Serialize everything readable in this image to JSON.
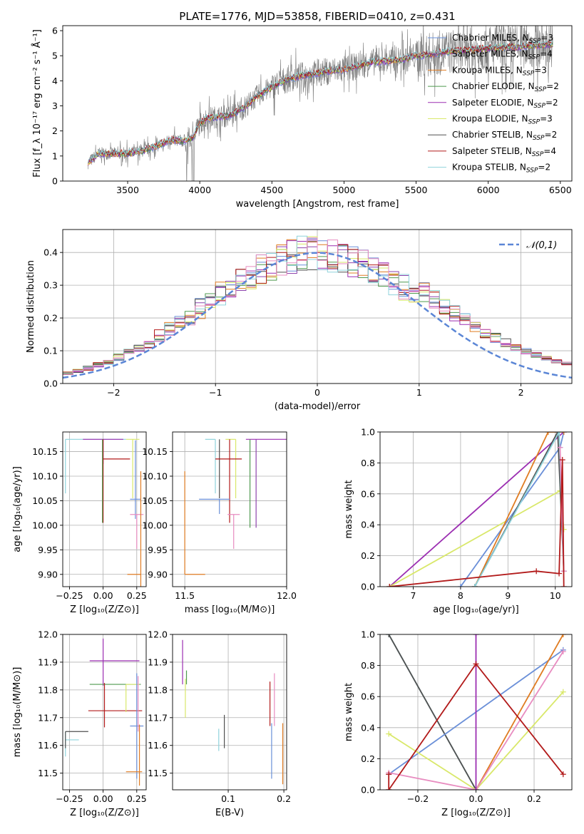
{
  "colors": {
    "Chabrier MILES": "#6a8fd8",
    "Salpeter MILES": "#8e44ad",
    "Kroupa MILES": "#e07c22",
    "Chabrier ELODIE": "#4f9a4f",
    "Salpeter ELODIE": "#9c2fb2",
    "Kroupa ELODIE": "#d9e86a",
    "Chabrier STELIB": "#505050",
    "Salpeter STELIB": "#b21a1a",
    "Kroupa STELIB": "#8fd3dc",
    "extra": "#e88cc0",
    "normal": "#5b86d6",
    "data": "#7a7a7a"
  },
  "chart_data": [
    {
      "id": "spectrum",
      "type": "line",
      "title": "PLATE=1776, MJD=53858, FIBERID=0410, z=0.431",
      "xlabel": "wavelength [Angstrom, rest frame]",
      "ylabel": "Flux [f_λ 10⁻¹⁷ erg cm⁻² s⁻¹ Å⁻¹]",
      "xlim": [
        3050,
        6580
      ],
      "ylim": [
        0,
        6.2
      ],
      "xticks": [
        3500,
        4000,
        4500,
        5000,
        5500,
        6000,
        6500
      ],
      "yticks": [
        0,
        1,
        2,
        3,
        4,
        5,
        6
      ],
      "grid": false,
      "legend_position": "top-right",
      "legend": [
        {
          "name": "Chabrier MILES",
          "nssp": "3"
        },
        {
          "name": "Salpeter MILES",
          "nssp": "4"
        },
        {
          "name": "Kroupa MILES",
          "nssp": "3"
        },
        {
          "name": "Chabrier ELODIE",
          "nssp": "2"
        },
        {
          "name": "Salpeter ELODIE",
          "nssp": "2"
        },
        {
          "name": "Kroupa ELODIE",
          "nssp": "3"
        },
        {
          "name": "Chabrier STELIB",
          "nssp": "2"
        },
        {
          "name": "Salpeter STELIB",
          "nssp": "4"
        },
        {
          "name": "Kroupa STELIB",
          "nssp": "2"
        }
      ],
      "continuum": {
        "x": [
          3220,
          3300,
          3400,
          3500,
          3600,
          3700,
          3800,
          3880,
          3950,
          4000,
          4050,
          4100,
          4200,
          4300,
          4400,
          4500,
          4600,
          4700,
          4800,
          4900,
          5000,
          5100,
          5200,
          5300,
          5400,
          5500,
          5600,
          5700,
          5800,
          5900,
          6000,
          6100,
          6200,
          6300,
          6450
        ],
        "y": [
          0.7,
          1.1,
          1.1,
          1.1,
          1.2,
          1.4,
          1.65,
          1.6,
          1.7,
          2.3,
          2.5,
          2.55,
          2.6,
          2.9,
          3.4,
          3.75,
          4.05,
          4.2,
          4.3,
          4.4,
          4.45,
          4.6,
          4.75,
          4.8,
          4.85,
          5.0,
          5.05,
          5.15,
          5.2,
          5.25,
          5.3,
          5.35,
          5.35,
          5.4,
          5.45
        ]
      }
    },
    {
      "id": "residuals",
      "type": "line",
      "xlabel": "(data-model)/error",
      "ylabel": "Normed distribution",
      "xlim": [
        -2.5,
        2.5
      ],
      "ylim": [
        0,
        0.47
      ],
      "xticks": [
        -2,
        -1,
        0,
        1,
        2
      ],
      "yticks": [
        0.0,
        0.1,
        0.2,
        0.3,
        0.4
      ],
      "grid": true,
      "legend_position": "top-right",
      "normal_label": "𝒩(0,1)",
      "bin_width": 0.1
    },
    {
      "id": "age-vs-Z",
      "type": "scatter",
      "xlabel": "Z [log₁₀(Z/Z⊙)]",
      "ylabel": "age  [log₁₀(age/yr)]",
      "xlim": [
        -0.3,
        0.32
      ],
      "ylim": [
        9.875,
        10.19
      ],
      "xticks": [
        -0.25,
        0.0,
        0.25
      ],
      "yticks": [
        9.9,
        9.95,
        10.0,
        10.05,
        10.1,
        10.15
      ],
      "grid": true,
      "errorbars": [
        {
          "series": "Kroupa STELIB",
          "x": -0.28,
          "y": 10.175,
          "xerr": [
            0.0,
            0.45
          ],
          "yerr": [
            0.11,
            0.0
          ]
        },
        {
          "series": "Salpeter ELODIE",
          "x": 0.0,
          "y": 10.175,
          "xerr": [
            0.15,
            0.15
          ],
          "yerr": [
            0.05,
            0.0
          ]
        },
        {
          "series": "Salpeter STELIB",
          "x": 0.0,
          "y": 10.135,
          "xerr": [
            0.0,
            0.2
          ],
          "yerr": [
            0.13,
            0.04
          ]
        },
        {
          "series": "Chabrier ELODIE",
          "x": -0.005,
          "y": 10.175,
          "xerr": [
            0.0,
            0.0
          ],
          "yerr": [
            0.17,
            0.0
          ]
        },
        {
          "series": "Kroupa ELODIE",
          "x": 0.22,
          "y": 10.175,
          "xerr": [
            0.05,
            0.05
          ],
          "yerr": [
            0.12,
            0.0
          ]
        },
        {
          "series": "Chabrier MILES",
          "x": 0.24,
          "y": 10.053,
          "xerr": [
            0.04,
            0.04
          ],
          "yerr": [
            0.04,
            0.12
          ]
        },
        {
          "series": "extra",
          "x": 0.25,
          "y": 10.022,
          "xerr": [
            0.05,
            0.05
          ],
          "yerr": [
            0.07,
            0.0
          ]
        },
        {
          "series": "Kroupa MILES",
          "x": 0.28,
          "y": 9.9,
          "xerr": [
            0.1,
            0.0
          ],
          "yerr": [
            0.03,
            0.21
          ]
        }
      ]
    },
    {
      "id": "age-vs-mass",
      "type": "scatter",
      "xlabel": "mass [log₁₀(M/M⊙)]",
      "xlim": [
        11.44,
        12.0
      ],
      "ylim": [
        9.875,
        10.19
      ],
      "xticks": [
        11.5,
        12.0
      ],
      "yticks": [
        9.9,
        9.95,
        10.0,
        10.05,
        10.1,
        10.15
      ],
      "grid": true,
      "errorbars": [
        {
          "series": "Kroupa STELIB",
          "x": 11.65,
          "y": 10.175,
          "xerr": [
            0.05,
            0.0
          ],
          "yerr": [
            0.11,
            0.0
          ]
        },
        {
          "series": "Chabrier STELIB",
          "x": 11.67,
          "y": 10.175,
          "xerr": [
            0.0,
            0.0
          ],
          "yerr": [
            0.12,
            0.0
          ]
        },
        {
          "series": "Salpeter ELODIE",
          "x": 11.9,
          "y": 10.175,
          "xerr": [
            0.1,
            0.1
          ],
          "yerr": [
            0.0,
            0.0
          ]
        },
        {
          "series": "Kroupa ELODIE",
          "x": 11.75,
          "y": 10.175,
          "xerr": [
            0.05,
            0.0
          ],
          "yerr": [
            0.12,
            0.0
          ]
        },
        {
          "series": "Salpeter STELIB",
          "x": 11.72,
          "y": 10.135,
          "xerr": [
            0.07,
            0.06
          ],
          "yerr": [
            0.13,
            0.04
          ]
        },
        {
          "series": "Chabrier ELODIE",
          "x": 11.82,
          "y": 10.175,
          "xerr": [
            0.0,
            0.0
          ],
          "yerr": [
            0.18,
            0.0
          ]
        },
        {
          "series": "Salpeter MILES",
          "x": 11.85,
          "y": 10.175,
          "xerr": [
            0.0,
            0.0
          ],
          "yerr": [
            0.18,
            0.0
          ]
        },
        {
          "series": "Chabrier MILES",
          "x": 11.67,
          "y": 10.053,
          "xerr": [
            0.1,
            0.05
          ],
          "yerr": [
            0.03,
            0.0
          ]
        },
        {
          "series": "extra",
          "x": 11.74,
          "y": 10.022,
          "xerr": [
            0.03,
            0.03
          ],
          "yerr": [
            0.07,
            0.0
          ]
        },
        {
          "series": "Kroupa MILES",
          "x": 11.5,
          "y": 9.9,
          "xerr": [
            0.0,
            0.1
          ],
          "yerr": [
            0.0,
            0.21
          ]
        }
      ]
    },
    {
      "id": "mass-weight-vs-age",
      "type": "line",
      "xlabel": "age  [log₁₀(age/yr)]",
      "ylabel": "mass weight",
      "xlim": [
        6.3,
        10.35
      ],
      "ylim": [
        0,
        1.0
      ],
      "xticks": [
        7,
        8,
        9,
        10
      ],
      "yticks": [
        0.0,
        0.2,
        0.4,
        0.6,
        0.8,
        1.0
      ],
      "grid": true,
      "series": [
        {
          "name": "Salpeter ELODIE",
          "x": [
            6.5,
            10.18
          ],
          "y": [
            0.0,
            1.0
          ]
        },
        {
          "name": "Kroupa ELODIE",
          "x": [
            6.5,
            10.1,
            10.18
          ],
          "y": [
            0.0,
            0.62,
            0.37
          ]
        },
        {
          "name": "Chabrier MILES",
          "x": [
            8.0,
            10.1,
            10.18
          ],
          "y": [
            0.0,
            0.9,
            1.0
          ]
        },
        {
          "name": "Kroupa MILES",
          "x": [
            8.3,
            9.85,
            10.18
          ],
          "y": [
            0.0,
            1.0,
            1.0
          ]
        },
        {
          "name": "Chabrier STELIB",
          "x": [
            8.3,
            10.05,
            10.18
          ],
          "y": [
            0.0,
            1.0,
            0.1
          ]
        },
        {
          "name": "Kroupa STELIB",
          "x": [
            8.3,
            10.08,
            10.18
          ],
          "y": [
            0.0,
            1.0,
            0.1
          ]
        },
        {
          "name": "extra",
          "x": [
            10.1,
            10.18
          ],
          "y": [
            0.9,
            0.1
          ]
        },
        {
          "name": "Salpeter STELIB",
          "x": [
            6.5,
            9.6,
            10.08,
            10.15,
            10.18
          ],
          "y": [
            0.0,
            0.1,
            0.085,
            0.82,
            0.0
          ]
        }
      ]
    },
    {
      "id": "mass-vs-Z",
      "type": "scatter",
      "xlabel": "Z [log₁₀(Z/Z⊙)]",
      "ylabel": "mass [log₁₀(M/M⊙)]",
      "xlim": [
        -0.3,
        0.32
      ],
      "ylim": [
        11.44,
        12.0
      ],
      "xticks": [
        -0.25,
        0.0,
        0.25
      ],
      "yticks": [
        11.5,
        11.6,
        11.7,
        11.8,
        11.9,
        12.0
      ],
      "grid": true,
      "errorbars": [
        {
          "series": "Kroupa STELIB",
          "x": -0.28,
          "y": 11.62,
          "xerr": [
            0.0,
            0.1
          ],
          "yerr": [
            0.06,
            0.03
          ]
        },
        {
          "series": "Chabrier STELIB",
          "x": -0.28,
          "y": 11.65,
          "xerr": [
            0.0,
            0.17
          ],
          "yerr": [
            0.06,
            0.0
          ]
        },
        {
          "series": "Salpeter ELODIE",
          "x": 0.0,
          "y": 11.905,
          "xerr": [
            0.1,
            0.27
          ],
          "yerr": [
            0.09,
            0.08
          ]
        },
        {
          "series": "Chabrier ELODIE",
          "x": 0.0,
          "y": 11.82,
          "xerr": [
            0.1,
            0.28
          ],
          "yerr": [
            0.0,
            0.0
          ]
        },
        {
          "series": "Salpeter STELIB",
          "x": 0.01,
          "y": 11.725,
          "xerr": [
            0.12,
            0.28
          ],
          "yerr": [
            0.06,
            0.1
          ]
        },
        {
          "series": "Kroupa ELODIE",
          "x": 0.17,
          "y": 11.82,
          "xerr": [
            0.0,
            0.1
          ],
          "yerr": [
            0.1,
            0.0
          ]
        },
        {
          "series": "Chabrier MILES",
          "x": 0.25,
          "y": 11.67,
          "xerr": [
            0.05,
            0.05
          ],
          "yerr": [
            0.19,
            0.19
          ]
        },
        {
          "series": "extra",
          "x": 0.26,
          "y": 11.75,
          "xerr": [
            0.0,
            0.0
          ],
          "yerr": [
            0.1,
            0.1
          ]
        },
        {
          "series": "Kroupa MILES",
          "x": 0.27,
          "y": 11.505,
          "xerr": [
            0.1,
            0.02
          ],
          "yerr": [
            0.05,
            0.17
          ]
        }
      ]
    },
    {
      "id": "mass-vs-ebv",
      "type": "scatter",
      "xlabel": "E(B-V)",
      "xlim": [
        0.0,
        0.205
      ],
      "ylim": [
        11.44,
        12.0
      ],
      "xticks": [
        0.1,
        0.2
      ],
      "yticks": [
        11.5,
        11.6,
        11.7,
        11.8,
        11.9,
        12.0
      ],
      "grid": true,
      "errorbars": [
        {
          "series": "Salpeter ELODIE",
          "x": 0.018,
          "y": 11.9,
          "xerr": [
            0.0,
            0.0
          ],
          "yerr": [
            0.08,
            0.08
          ]
        },
        {
          "series": "Kroupa ELODIE",
          "x": 0.023,
          "y": 11.79,
          "xerr": [
            0.0,
            0.0
          ],
          "yerr": [
            0.09,
            0.05
          ]
        },
        {
          "series": "Chabrier ELODIE",
          "x": 0.025,
          "y": 11.82,
          "xerr": [
            0.0,
            0.0
          ],
          "yerr": [
            0.0,
            0.05
          ]
        },
        {
          "series": "Kroupa STELIB",
          "x": 0.083,
          "y": 11.62,
          "xerr": [
            0.0,
            0.0
          ],
          "yerr": [
            0.04,
            0.04
          ]
        },
        {
          "series": "Chabrier STELIB",
          "x": 0.093,
          "y": 11.65,
          "xerr": [
            0.0,
            0.0
          ],
          "yerr": [
            0.06,
            0.06
          ]
        },
        {
          "series": "Salpeter STELIB",
          "x": 0.175,
          "y": 11.75,
          "xerr": [
            0.0,
            0.0
          ],
          "yerr": [
            0.08,
            0.08
          ]
        },
        {
          "series": "Chabrier MILES",
          "x": 0.178,
          "y": 11.6,
          "xerr": [
            0.0,
            0.0
          ],
          "yerr": [
            0.12,
            0.08
          ]
        },
        {
          "series": "extra",
          "x": 0.183,
          "y": 11.77,
          "xerr": [
            0.0,
            0.0
          ],
          "yerr": [
            0.1,
            0.09
          ]
        },
        {
          "series": "Kroupa MILES",
          "x": 0.198,
          "y": 11.57,
          "xerr": [
            0.0,
            0.0
          ],
          "yerr": [
            0.11,
            0.11
          ]
        }
      ]
    },
    {
      "id": "mass-weight-vs-Z",
      "type": "line",
      "xlabel": "Z [log₁₀(Z/Z⊙)]",
      "ylabel": "mass weight",
      "xlim": [
        -0.33,
        0.33
      ],
      "ylim": [
        0,
        1.0
      ],
      "xticks": [
        -0.2,
        0.0,
        0.2
      ],
      "yticks": [
        0.0,
        0.2,
        0.4,
        0.6,
        0.8,
        1.0
      ],
      "grid": true,
      "series": [
        {
          "name": "Kroupa STELIB",
          "x": [
            -0.3,
            0.0
          ],
          "y": [
            1.0,
            0.0
          ]
        },
        {
          "name": "Chabrier STELIB",
          "x": [
            -0.3,
            0.0
          ],
          "y": [
            1.0,
            0.0
          ]
        },
        {
          "name": "Chabrier MILES",
          "x": [
            -0.3,
            0.3
          ],
          "y": [
            0.1,
            0.9
          ]
        },
        {
          "name": "Kroupa MILES",
          "x": [
            0.0,
            0.3
          ],
          "y": [
            0.0,
            1.0
          ]
        },
        {
          "name": "Kroupa ELODIE",
          "x": [
            -0.3,
            0.0,
            0.3
          ],
          "y": [
            0.36,
            0.0,
            0.63
          ]
        },
        {
          "name": "extra",
          "x": [
            -0.3,
            0.0,
            0.3
          ],
          "y": [
            0.11,
            0.0,
            0.89
          ]
        },
        {
          "name": "Salpeter ELODIE",
          "x": [
            0.0,
            0.0
          ],
          "y": [
            0.0,
            1.0
          ]
        },
        {
          "name": "Salpeter STELIB",
          "x": [
            -0.3,
            0.0,
            0.3
          ],
          "y": [
            0.0,
            0.81,
            0.1
          ]
        },
        {
          "name": "Salpeter STELIB",
          "x": [
            -0.3,
            -0.3
          ],
          "y": [
            0.0,
            0.1
          ]
        }
      ]
    }
  ]
}
